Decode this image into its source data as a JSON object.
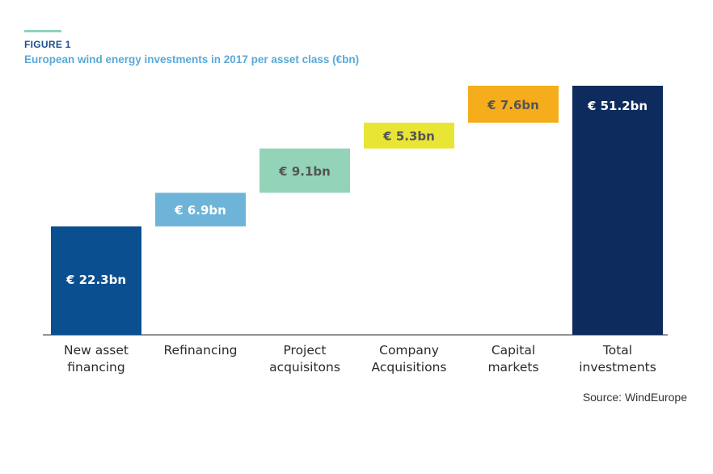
{
  "header": {
    "figure_label": "FIGURE 1",
    "title": "European wind energy investments in 2017 per asset class (€bn)"
  },
  "source": "Source: WindEurope",
  "chart_data": {
    "type": "bar",
    "subtype": "waterfall",
    "title": "European wind energy investments in 2017 per asset class (€bn)",
    "xlabel": "",
    "ylabel": "",
    "ylim": [
      0,
      51.2
    ],
    "grid": false,
    "legend": "none",
    "categories": [
      [
        "New asset",
        "financing"
      ],
      [
        "Refinancing"
      ],
      [
        "Project",
        "acquisitons"
      ],
      [
        "Company",
        "Acquisitions"
      ],
      [
        "Capital",
        "markets"
      ],
      [
        "Total",
        "investments"
      ]
    ],
    "values": [
      22.3,
      6.9,
      9.1,
      5.3,
      7.6,
      51.2
    ],
    "labels": [
      "€ 22.3bn",
      "€ 6.9bn",
      "€ 9.1bn",
      "€ 5.3bn",
      "€ 7.6bn",
      "€ 51.2bn"
    ],
    "colors": [
      "#0a4f8f",
      "#6eb4d8",
      "#93d4b8",
      "#e8e535",
      "#f5ad1b",
      "#0d2b5c"
    ],
    "label_colors": [
      "#ffffff",
      "#ffffff",
      "#555555",
      "#555555",
      "#555555",
      "#ffffff"
    ],
    "is_total": [
      false,
      false,
      false,
      false,
      false,
      true
    ]
  }
}
